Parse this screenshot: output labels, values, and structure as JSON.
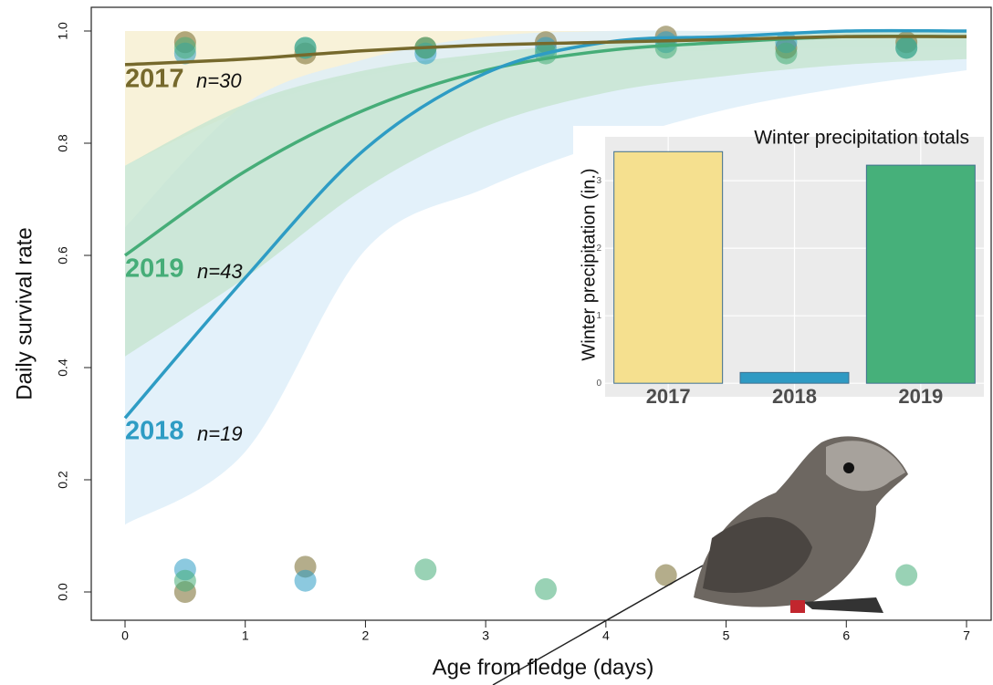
{
  "chart_data": [
    {
      "type": "line",
      "x_label": "Age from fledge (days)",
      "y_label": "Daily survival rate",
      "xlim": [
        0,
        7
      ],
      "xticks": [
        0,
        1,
        2,
        3,
        4,
        5,
        6,
        7
      ],
      "ylim": [
        0,
        1
      ],
      "yticks": [
        {
          "value": 0,
          "label": "0.0"
        },
        0.2,
        0.4,
        0.6,
        0.8,
        {
          "value": 1,
          "label": "1.0"
        }
      ],
      "x": [
        0,
        1,
        2,
        3,
        4,
        5,
        6,
        7
      ],
      "series": [
        {
          "name": "2017",
          "n_label": "n=30",
          "color": "#76692c",
          "band_color": "#f6efcf",
          "values": [
            0.94,
            0.95,
            0.965,
            0.975,
            0.98,
            0.985,
            0.99,
            0.99
          ],
          "lower": [
            0.76,
            0.86,
            0.92,
            0.95,
            0.96,
            0.965,
            0.97,
            0.97
          ],
          "upper": [
            1,
            1,
            1,
            1,
            1,
            1,
            1,
            1
          ],
          "points_x": [
            0.5,
            1.5,
            2.5,
            3.5,
            4.5,
            5.5,
            6.5,
            0.5,
            1.5,
            4.5
          ],
          "points_y": [
            0.98,
            0.96,
            0.97,
            0.98,
            0.99,
            0.97,
            0.98,
            0.0,
            0.045,
            0.03
          ]
        },
        {
          "name": "2018",
          "n_label": "n=19",
          "color": "#2e9cc4",
          "band_color": "#dcedf9",
          "values": [
            0.31,
            0.56,
            0.79,
            0.925,
            0.98,
            0.99,
            1,
            1
          ],
          "lower": [
            0.12,
            0.25,
            0.61,
            0.72,
            0.8,
            0.86,
            0.9,
            0.93
          ],
          "upper": [
            0.65,
            0.87,
            0.95,
            0.99,
            1,
            1,
            1,
            1
          ],
          "points_x": [
            0.5,
            1.5,
            2.5,
            3.5,
            4.5,
            5.5,
            6.5,
            0.5,
            1.5
          ],
          "points_y": [
            0.96,
            0.97,
            0.96,
            0.97,
            0.98,
            0.98,
            0.97,
            0.04,
            0.02
          ]
        },
        {
          "name": "2019",
          "n_label": "n=43",
          "color": "#46ad78",
          "band_color": "#c6e5cf",
          "values": [
            0.6,
            0.75,
            0.86,
            0.93,
            0.965,
            0.98,
            0.99,
            0.99
          ],
          "lower": [
            0.42,
            0.56,
            0.72,
            0.83,
            0.89,
            0.92,
            0.94,
            0.95
          ],
          "upper": [
            0.76,
            0.87,
            0.93,
            0.96,
            0.98,
            0.99,
            1,
            1
          ],
          "points_x": [
            0.5,
            1.5,
            2.5,
            3.5,
            4.5,
            5.5,
            6.5,
            0.5,
            2.5,
            3.5,
            6.5
          ],
          "points_y": [
            0.97,
            0.97,
            0.97,
            0.96,
            0.97,
            0.96,
            0.97,
            0.02,
            0.04,
            0.005,
            0.03
          ]
        }
      ]
    },
    {
      "type": "bar",
      "title": "Winter precipitation totals",
      "y_label": "Winter precipitation (in.)",
      "categories": [
        "2017",
        "2018",
        "2019"
      ],
      "values": [
        3.43,
        0.16,
        3.23
      ],
      "colors": [
        "#f5e08f",
        "#2f9ac3",
        "#46b07a"
      ],
      "ylim": [
        -0.2,
        3.65
      ],
      "yticks": [
        0,
        1,
        2,
        3
      ],
      "grid": true
    }
  ]
}
